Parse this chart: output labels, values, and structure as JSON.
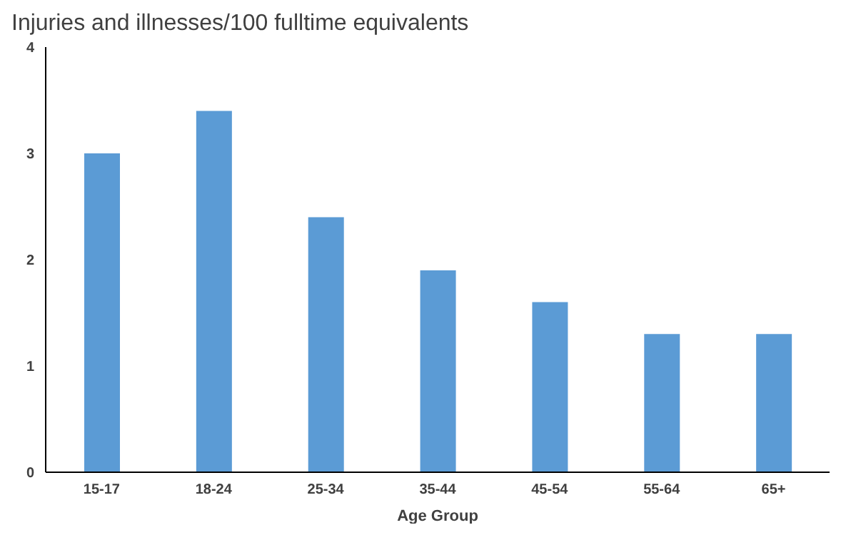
{
  "chart_data": {
    "type": "bar",
    "title": "Injuries and illnesses/100 fulltime equivalents",
    "xlabel": "Age Group",
    "categories": [
      "15-17",
      "18-24",
      "25-34",
      "35-44",
      "45-54",
      "55-64",
      "65+"
    ],
    "values": [
      3.0,
      3.4,
      2.4,
      1.9,
      1.6,
      1.3,
      1.3
    ],
    "color": "#5b9bd5",
    "ylim": [
      0,
      4
    ],
    "yticks": [
      0,
      1,
      2,
      3,
      4
    ],
    "grid": false,
    "legend": false
  }
}
